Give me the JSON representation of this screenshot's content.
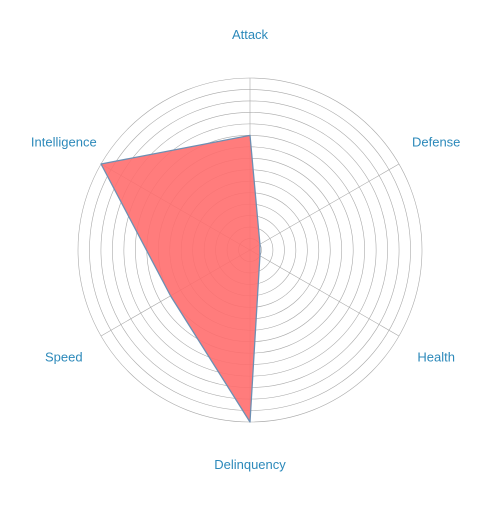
{
  "chart_data": {
    "type": "radar",
    "axes": [
      "Attack",
      "Defense",
      "Health",
      "Delinquency",
      "Speed",
      "Intelligence"
    ],
    "series": [
      {
        "values": [
          10,
          1,
          1,
          15,
          8,
          15
        ]
      }
    ],
    "rlim": [
      0,
      15
    ],
    "ring_count": 15,
    "grid": true,
    "colors": {
      "fill": "#ff6e6e",
      "line": "#6d8fb3",
      "grid": "#a9a9a9",
      "label": "#2c89ba"
    }
  }
}
